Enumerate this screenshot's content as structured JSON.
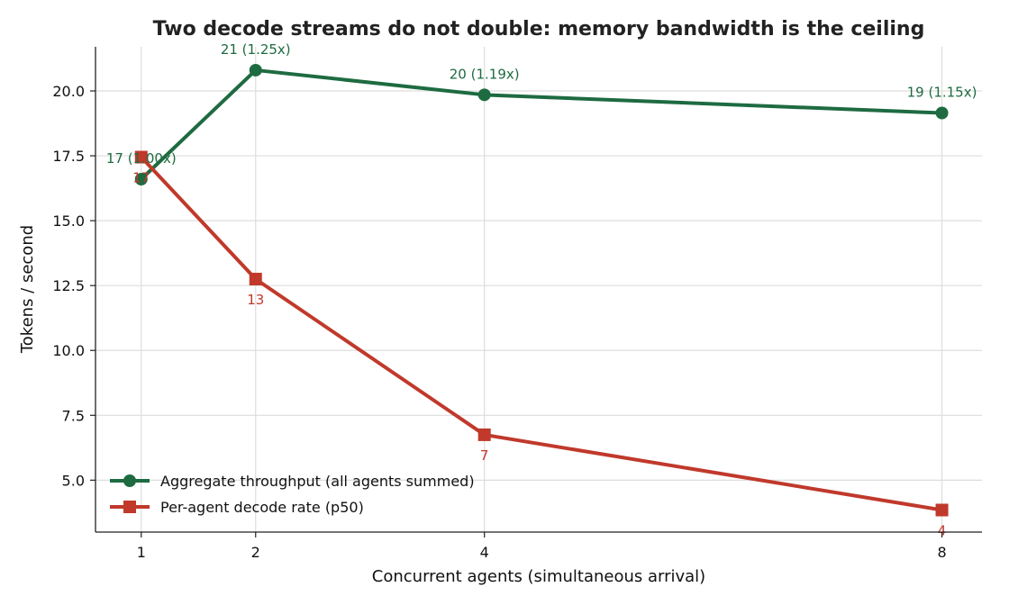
{
  "chart_data": {
    "type": "line",
    "title": "Two decode streams do not double: memory bandwidth is the ceiling",
    "xlabel": "Concurrent agents (simultaneous arrival)",
    "ylabel": "Tokens / second",
    "x": [
      1,
      2,
      4,
      8
    ],
    "x_tick_labels": [
      "1",
      "2",
      "4",
      "8"
    ],
    "xlim": [
      0.6,
      8.35
    ],
    "ylim": [
      3.0,
      21.7
    ],
    "y_ticks": [
      5.0,
      7.5,
      10.0,
      12.5,
      15.0,
      17.5,
      20.0
    ],
    "y_tick_labels": [
      "5.0",
      "7.5",
      "10.0",
      "12.5",
      "15.0",
      "17.5",
      "20.0"
    ],
    "grid": true,
    "legend_position": "bottom-left",
    "series": [
      {
        "name": "Aggregate throughput (all agents summed)",
        "color": "#1e6b41",
        "marker": "circle",
        "values": [
          16.6,
          20.8,
          19.85,
          19.15
        ],
        "point_labels": [
          "17  (1.00x)",
          "21  (1.25x)",
          "20  (1.19x)",
          "19  (1.15x)"
        ],
        "label_position": "above"
      },
      {
        "name": "Per-agent decode rate (p50)",
        "color": "#c0392b",
        "marker": "square",
        "values": [
          17.45,
          12.75,
          6.75,
          3.85
        ],
        "point_labels": [
          "17",
          "13",
          "7",
          "4"
        ],
        "label_position": "below"
      }
    ]
  }
}
